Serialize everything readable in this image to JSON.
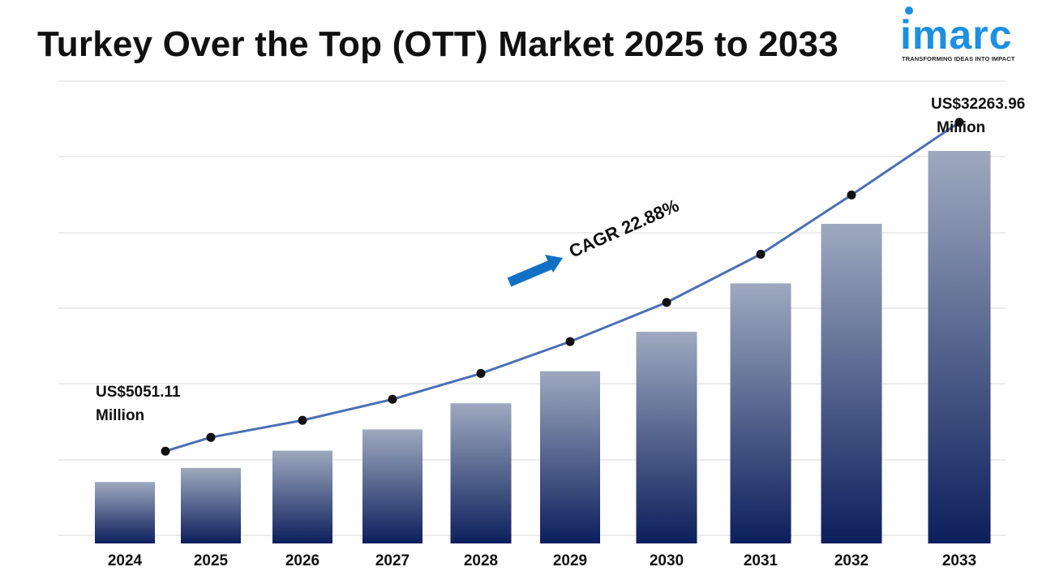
{
  "header": {
    "title": "Turkey Over the Top (OTT) Market 2025 to 2033"
  },
  "logo": {
    "word": "imarc",
    "tagline": "TRANSFORMING IDEAS INTO IMPACT",
    "icon": "imarc-logo",
    "color": "#1d8fe0"
  },
  "chart_data": {
    "type": "bar",
    "title": "Turkey Over the Top (OTT) Market 2025 to 2033",
    "xlabel": "",
    "ylabel": "",
    "categories": [
      "2024",
      "2025",
      "2026",
      "2027",
      "2028",
      "2029",
      "2030",
      "2031",
      "2032",
      "2033"
    ],
    "values": [
      5051.11,
      6207,
      7628,
      9374,
      11519,
      14156,
      17396,
      21378,
      26271,
      32263.96
    ],
    "ylim": [
      0,
      36000
    ],
    "grid": true,
    "legend": "none",
    "overlay": "line-with-markers",
    "annotations": {
      "start_value": "US$5051.11",
      "start_unit": "Million",
      "end_value": "US$32263.96",
      "end_unit": "Million",
      "cagr": "CAGR 22.88%"
    },
    "colors": {
      "bar_top": "#9ea9bf",
      "bar_bottom": "#0c1f5c",
      "line": "#4a6fb5",
      "marker": "#111111",
      "arrow": "#1170c4",
      "grid": "#d9d9d9"
    }
  }
}
